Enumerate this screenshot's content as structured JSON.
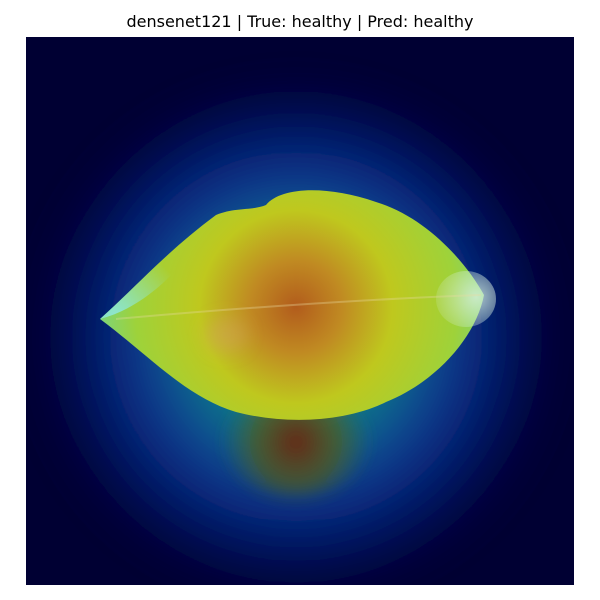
{
  "figure": {
    "title": "densenet121 | True: healthy | Pred: healthy"
  },
  "colors": {
    "background": "#000033",
    "heatmap_mid": "#1a8c9c",
    "heatmap_high": "#c8d41e",
    "heatmap_peak": "#9e3a1a"
  },
  "image": {
    "subject": "leaf-icon"
  }
}
